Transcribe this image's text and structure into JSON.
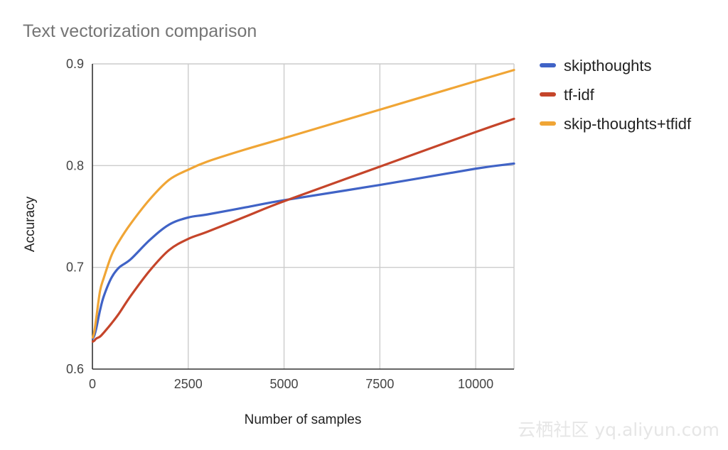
{
  "chart_data": {
    "type": "line",
    "title": "Text vectorization comparison",
    "xlabel": "Number of samples",
    "ylabel": "Accuracy",
    "xlim": [
      0,
      11000
    ],
    "ylim": [
      0.6,
      0.9
    ],
    "xticks": [
      0,
      2500,
      5000,
      7500,
      10000
    ],
    "xtick_labels": [
      "0",
      "2500",
      "5000",
      "7500",
      "10000"
    ],
    "yticks": [
      0.6,
      0.7,
      0.8,
      0.9
    ],
    "ytick_labels": [
      "0.6",
      "0.7",
      "0.8",
      "0.9"
    ],
    "grid": true,
    "legend_position": "right",
    "series": [
      {
        "name": "skipthoughts",
        "color": "#4063c6",
        "x": [
          10,
          50,
          100,
          200,
          300,
          500,
          700,
          1000,
          1500,
          2000,
          2500,
          3000,
          4000,
          5000,
          7500,
          10000,
          11000
        ],
        "y": [
          0.63,
          0.633,
          0.64,
          0.658,
          0.672,
          0.69,
          0.7,
          0.708,
          0.727,
          0.742,
          0.749,
          0.752,
          0.759,
          0.766,
          0.781,
          0.797,
          0.802
        ]
      },
      {
        "name": "tf-idf",
        "color": "#c5452a",
        "x": [
          10,
          50,
          100,
          200,
          300,
          500,
          700,
          1000,
          1500,
          2000,
          2500,
          3000,
          4000,
          5000,
          7500,
          10000,
          11000
        ],
        "y": [
          0.627,
          0.628,
          0.63,
          0.632,
          0.636,
          0.645,
          0.655,
          0.672,
          0.697,
          0.717,
          0.728,
          0.735,
          0.75,
          0.765,
          0.799,
          0.833,
          0.846
        ]
      },
      {
        "name": "skip-thoughts+tfidf",
        "color": "#f0a535",
        "x": [
          10,
          50,
          100,
          200,
          300,
          500,
          700,
          1000,
          1500,
          2000,
          2500,
          3000,
          4000,
          5000,
          7500,
          10000,
          11000
        ],
        "y": [
          0.631,
          0.637,
          0.65,
          0.677,
          0.69,
          0.712,
          0.726,
          0.743,
          0.767,
          0.786,
          0.796,
          0.804,
          0.816,
          0.827,
          0.855,
          0.883,
          0.894
        ]
      }
    ]
  },
  "watermark": {
    "text": "云栖社区 yq.aliyun.com"
  }
}
